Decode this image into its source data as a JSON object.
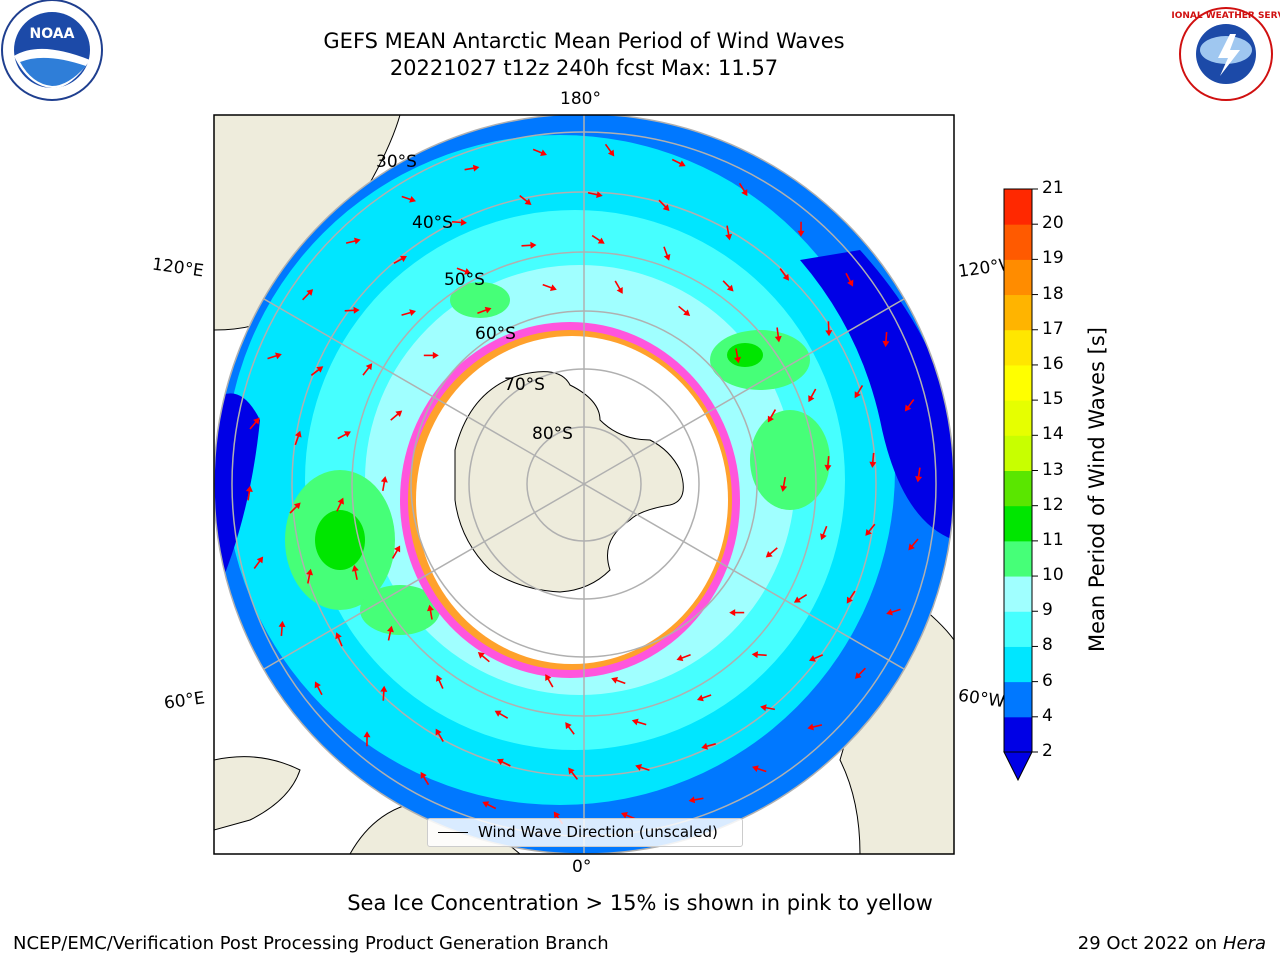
{
  "header": {
    "title_line1": "GEFS MEAN Antarctic Mean Period of Wind Waves",
    "title_line2": "20221027 t12z 240h fcst   Max: 11.57"
  },
  "map": {
    "projection": "south-polar-stereographic",
    "latitude_labels": [
      "30°S",
      "40°S",
      "50°S",
      "60°S",
      "70°S",
      "80°S"
    ],
    "longitude_labels": {
      "top": "180°",
      "bottom": "0°",
      "upper_left": "120°E",
      "upper_right": "120°W",
      "lower_left": "60°E",
      "lower_right": "60°W"
    },
    "land_color": "#eeecdc",
    "sea_ice_color": "#ffffff",
    "arrow_color": "#ff0000"
  },
  "legend": {
    "label": "Wind Wave Direction (unscaled)"
  },
  "colorbar": {
    "label": "Mean Period of Wind Waves [s]",
    "ticks": [
      "2",
      "4",
      "6",
      "8",
      "9",
      "10",
      "11",
      "12",
      "13",
      "14",
      "15",
      "16",
      "17",
      "18",
      "19",
      "20",
      "21"
    ],
    "colors": [
      "#0000e6",
      "#0078ff",
      "#00e6ff",
      "#46ffff",
      "#a0ffff",
      "#46ff78",
      "#00e600",
      "#5ae600",
      "#c8ff00",
      "#e6ff00",
      "#ffff00",
      "#ffe600",
      "#ffb400",
      "#ff8c00",
      "#ff5a00",
      "#ff2800"
    ],
    "under_color": "#0000e6"
  },
  "caption": "Sea Ice Concentration > 15% is shown in pink to yellow",
  "footer": {
    "left": "NCEP/EMC/Verification Post Processing Product Generation Branch",
    "right_prefix": "29 Oct 2022 on ",
    "right_host": "Hera"
  },
  "logos": {
    "noaa": "NOAA",
    "nws": "NATIONAL WEATHER SERVICE"
  }
}
